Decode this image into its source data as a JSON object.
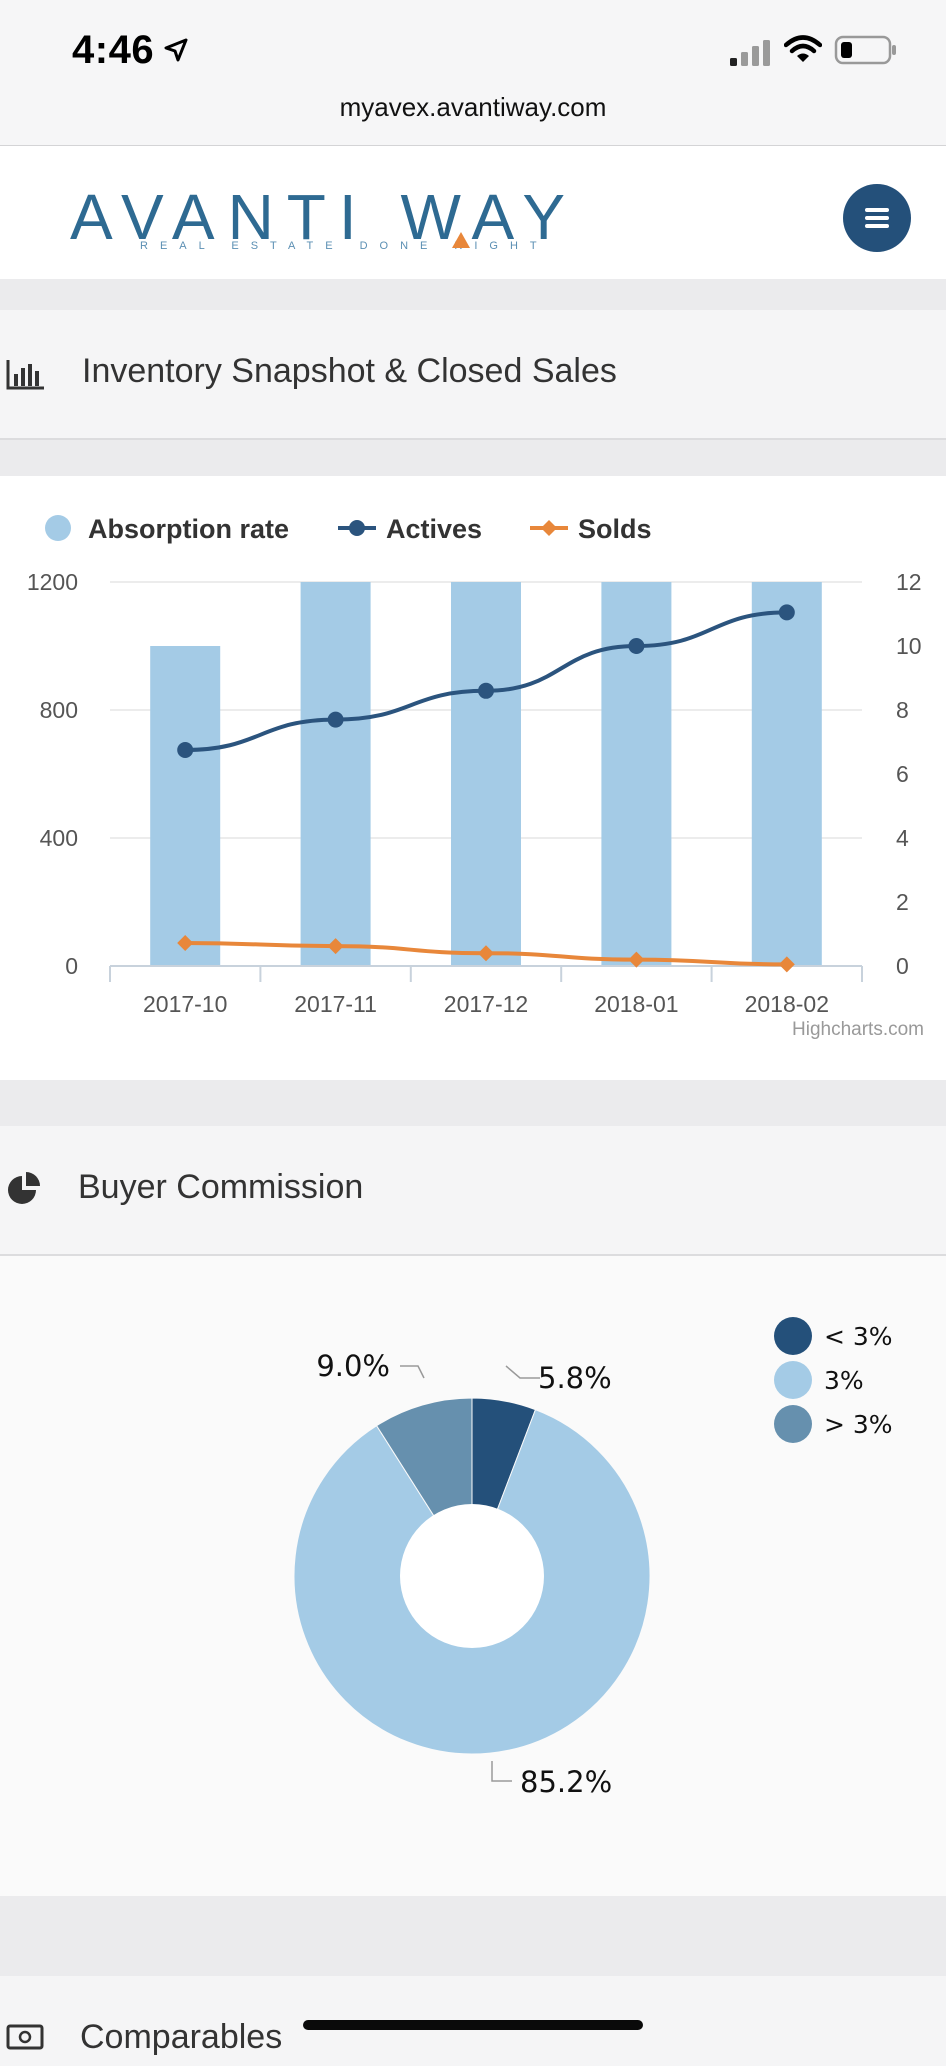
{
  "status_bar": {
    "time": "4:46",
    "url": "myavex.avantiway.com",
    "icons": [
      "location-arrow-icon",
      "signal-icon",
      "wifi-icon",
      "battery-icon"
    ]
  },
  "header": {
    "logo_text": "AVANTI WAY",
    "logo_tagline": "REAL ESTATE DONE RIGHT",
    "menu_icon": "hamburger-menu-icon",
    "brand_color": "#24507a",
    "accent_color": "#e8873a"
  },
  "sections": {
    "inventory": {
      "title": "Inventory Snapshot & Closed Sales",
      "icon": "bar-chart-icon"
    },
    "commission": {
      "title": "Buyer Commission",
      "icon": "pie-chart-icon"
    },
    "comparables": {
      "title": "Comparables",
      "icon": "money-icon"
    }
  },
  "chart_data": [
    {
      "type": "bar",
      "legend": [
        "Absorption rate",
        "Actives",
        "Solds"
      ],
      "categories": [
        "2017-10",
        "2017-11",
        "2017-12",
        "2018-01",
        "2018-02"
      ],
      "series": [
        {
          "name": "Absorption rate",
          "type": "bar",
          "axis": "right",
          "color": "#a4cbe6",
          "values": [
            10,
            12,
            12,
            12,
            12
          ]
        },
        {
          "name": "Actives",
          "type": "line",
          "axis": "left",
          "color": "#2b547e",
          "values": [
            675,
            770,
            860,
            1000,
            1105
          ]
        },
        {
          "name": "Solds",
          "type": "line",
          "axis": "left",
          "color": "#e8873a",
          "values": [
            72,
            62,
            40,
            20,
            5
          ]
        }
      ],
      "ylim_left": [
        0,
        1200
      ],
      "yticks_left": [
        "0",
        "400",
        "800",
        "1200"
      ],
      "ylim_right": [
        0,
        12
      ],
      "yticks_right": [
        "0",
        "2",
        "4",
        "6",
        "8",
        "10",
        "12"
      ],
      "grid": true,
      "legend_position": "top-left",
      "credit": "Highcharts.com"
    },
    {
      "type": "pie",
      "donut": true,
      "slices": [
        {
          "name": "< 3%",
          "value": 5.8,
          "label": "5.8%",
          "color": "#24507a"
        },
        {
          "name": "3%",
          "value": 85.2,
          "label": "85.2%",
          "color": "#a4cbe6"
        },
        {
          "name": "> 3%",
          "value": 9.0,
          "label": "9.0%",
          "color": "#6690ae"
        }
      ],
      "legend_position": "top-right"
    }
  ]
}
